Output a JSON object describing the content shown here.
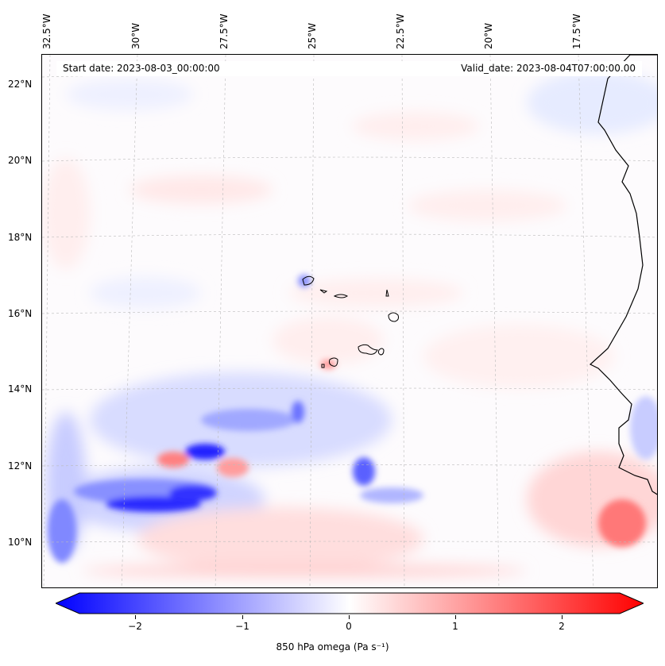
{
  "map": {
    "start_label": "Start date: 2023-08-03_00:00:00",
    "valid_label": "Valid_date: 2023-08-04T07:00:00.00",
    "lon_labels": [
      "32.5°W",
      "30°W",
      "27.5°W",
      "25°W",
      "22.5°W",
      "20°W",
      "17.5°W"
    ],
    "lat_labels": [
      "22°N",
      "20°N",
      "18°N",
      "16°N",
      "14°N",
      "12°N",
      "10°N"
    ],
    "colors": {
      "negative": "#0000ff",
      "neutral": "#ffffff",
      "positive": "#ff0000",
      "coast": "#000000"
    }
  },
  "colorbar": {
    "ticks": [
      "−2",
      "−1",
      "0",
      "1",
      "2"
    ],
    "label": "850 hPa omega (Pa s⁻¹)"
  }
}
